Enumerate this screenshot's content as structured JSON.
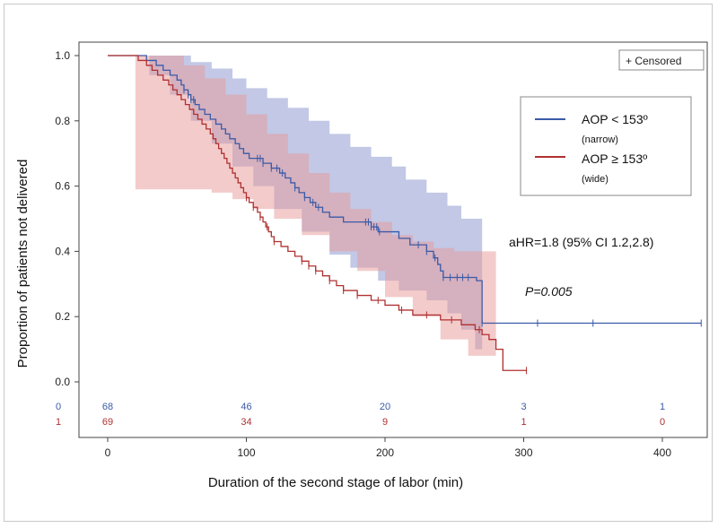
{
  "chart_data": {
    "type": "line",
    "title": "",
    "xlabel": "Duration of the second stage of labor (min)",
    "ylabel": "Proportion of patients not delivered",
    "xlim": [
      -15,
      430
    ],
    "ylim": [
      0.0,
      1.0
    ],
    "x_ticks": [
      0,
      100,
      200,
      300,
      400
    ],
    "x_tick_labels": [
      "0",
      "100",
      "200",
      "300",
      "400"
    ],
    "y_ticks": [
      0.0,
      0.2,
      0.4,
      0.6,
      0.8,
      1.0
    ],
    "y_tick_labels": [
      "0.0",
      "0.2",
      "0.4",
      "0.6",
      "0.8",
      "1.0"
    ],
    "censored_label": "+ Censored",
    "legend": [
      {
        "label": "AOP < 153º",
        "sub": "(narrow)",
        "color": "#3a5aa8"
      },
      {
        "label": "AOP ≥ 153º",
        "sub": "(wide)",
        "color": "#b03030"
      }
    ],
    "annotations": {
      "ahr": "aHR=1.8 (95% CI 1.2,2.8)",
      "p": "P=0.005"
    },
    "at_risk": {
      "times": [
        0,
        100,
        200,
        300,
        400
      ],
      "rows": [
        {
          "group": "0",
          "values": [
            "68",
            "46",
            "20",
            "3",
            "1"
          ],
          "color": "#3a5aa8"
        },
        {
          "group": "1",
          "values": [
            "69",
            "34",
            "9",
            "1",
            "0"
          ],
          "color": "#b03030"
        }
      ]
    },
    "series": [
      {
        "name": "AOP < 153º",
        "color": "#3a5aa8",
        "band_color": "#8f9bd0",
        "steps": [
          [
            0,
            1.0
          ],
          [
            25,
            1.0
          ],
          [
            28,
            0.985
          ],
          [
            35,
            0.97
          ],
          [
            40,
            0.955
          ],
          [
            45,
            0.94
          ],
          [
            50,
            0.925
          ],
          [
            53,
            0.91
          ],
          [
            55,
            0.895
          ],
          [
            58,
            0.88
          ],
          [
            60,
            0.865
          ],
          [
            63,
            0.85
          ],
          [
            66,
            0.835
          ],
          [
            70,
            0.82
          ],
          [
            74,
            0.805
          ],
          [
            78,
            0.79
          ],
          [
            82,
            0.775
          ],
          [
            85,
            0.76
          ],
          [
            88,
            0.745
          ],
          [
            92,
            0.73
          ],
          [
            95,
            0.715
          ],
          [
            98,
            0.7
          ],
          [
            102,
            0.685
          ],
          [
            112,
            0.67
          ],
          [
            118,
            0.655
          ],
          [
            124,
            0.64
          ],
          [
            128,
            0.625
          ],
          [
            132,
            0.61
          ],
          [
            135,
            0.595
          ],
          [
            138,
            0.58
          ],
          [
            142,
            0.565
          ],
          [
            146,
            0.55
          ],
          [
            150,
            0.535
          ],
          [
            155,
            0.52
          ],
          [
            160,
            0.505
          ],
          [
            170,
            0.49
          ],
          [
            190,
            0.475
          ],
          [
            195,
            0.46
          ],
          [
            210,
            0.44
          ],
          [
            218,
            0.42
          ],
          [
            230,
            0.4
          ],
          [
            235,
            0.38
          ],
          [
            238,
            0.36
          ],
          [
            240,
            0.34
          ],
          [
            242,
            0.32
          ],
          [
            266,
            0.31
          ],
          [
            270,
            0.18
          ],
          [
            428,
            0.18
          ]
        ],
        "upper": [
          [
            0,
            1.0
          ],
          [
            50,
            1.0
          ],
          [
            60,
            0.98
          ],
          [
            75,
            0.96
          ],
          [
            90,
            0.93
          ],
          [
            100,
            0.9
          ],
          [
            115,
            0.87
          ],
          [
            130,
            0.84
          ],
          [
            145,
            0.8
          ],
          [
            160,
            0.76
          ],
          [
            175,
            0.72
          ],
          [
            190,
            0.69
          ],
          [
            205,
            0.66
          ],
          [
            215,
            0.62
          ],
          [
            230,
            0.58
          ],
          [
            245,
            0.54
          ],
          [
            255,
            0.5
          ],
          [
            270,
            0.5
          ]
        ],
        "lower": [
          [
            0,
            1.0
          ],
          [
            30,
            0.94
          ],
          [
            45,
            0.88
          ],
          [
            60,
            0.8
          ],
          [
            75,
            0.73
          ],
          [
            90,
            0.66
          ],
          [
            105,
            0.6
          ],
          [
            120,
            0.53
          ],
          [
            140,
            0.46
          ],
          [
            160,
            0.39
          ],
          [
            175,
            0.35
          ],
          [
            195,
            0.31
          ],
          [
            210,
            0.28
          ],
          [
            230,
            0.25
          ],
          [
            245,
            0.21
          ],
          [
            255,
            0.16
          ],
          [
            265,
            0.1
          ],
          [
            270,
            0.08
          ]
        ],
        "censored": [
          55,
          58,
          60,
          62,
          108,
          110,
          112,
          118,
          122,
          126,
          135,
          142,
          148,
          152,
          186,
          188,
          190,
          192,
          194,
          196,
          224,
          230,
          236,
          242,
          247,
          252,
          256,
          260,
          270,
          310,
          350,
          428
        ]
      },
      {
        "name": "AOP ≥ 153º",
        "color": "#b03030",
        "band_color": "#e89898",
        "steps": [
          [
            0,
            1.0
          ],
          [
            20,
            1.0
          ],
          [
            22,
            0.985
          ],
          [
            28,
            0.97
          ],
          [
            32,
            0.955
          ],
          [
            36,
            0.94
          ],
          [
            40,
            0.925
          ],
          [
            44,
            0.91
          ],
          [
            47,
            0.895
          ],
          [
            50,
            0.88
          ],
          [
            53,
            0.865
          ],
          [
            56,
            0.85
          ],
          [
            59,
            0.835
          ],
          [
            62,
            0.82
          ],
          [
            65,
            0.805
          ],
          [
            68,
            0.79
          ],
          [
            71,
            0.775
          ],
          [
            74,
            0.76
          ],
          [
            76,
            0.745
          ],
          [
            78,
            0.73
          ],
          [
            80,
            0.715
          ],
          [
            82,
            0.7
          ],
          [
            84,
            0.685
          ],
          [
            86,
            0.67
          ],
          [
            88,
            0.655
          ],
          [
            90,
            0.64
          ],
          [
            92,
            0.625
          ],
          [
            94,
            0.61
          ],
          [
            96,
            0.595
          ],
          [
            98,
            0.58
          ],
          [
            100,
            0.565
          ],
          [
            102,
            0.55
          ],
          [
            105,
            0.535
          ],
          [
            108,
            0.52
          ],
          [
            110,
            0.505
          ],
          [
            112,
            0.49
          ],
          [
            114,
            0.475
          ],
          [
            116,
            0.46
          ],
          [
            118,
            0.445
          ],
          [
            120,
            0.43
          ],
          [
            125,
            0.415
          ],
          [
            130,
            0.4
          ],
          [
            135,
            0.385
          ],
          [
            140,
            0.37
          ],
          [
            145,
            0.355
          ],
          [
            150,
            0.34
          ],
          [
            155,
            0.325
          ],
          [
            160,
            0.31
          ],
          [
            165,
            0.295
          ],
          [
            170,
            0.28
          ],
          [
            180,
            0.265
          ],
          [
            190,
            0.25
          ],
          [
            200,
            0.235
          ],
          [
            210,
            0.22
          ],
          [
            220,
            0.205
          ],
          [
            240,
            0.19
          ],
          [
            255,
            0.175
          ],
          [
            265,
            0.16
          ],
          [
            270,
            0.145
          ],
          [
            275,
            0.13
          ],
          [
            280,
            0.1
          ],
          [
            285,
            0.035
          ],
          [
            302,
            0.035
          ]
        ],
        "upper": [
          [
            0,
            1.0
          ],
          [
            40,
            1.0
          ],
          [
            55,
            0.97
          ],
          [
            70,
            0.93
          ],
          [
            85,
            0.88
          ],
          [
            100,
            0.82
          ],
          [
            115,
            0.76
          ],
          [
            130,
            0.7
          ],
          [
            145,
            0.64
          ],
          [
            160,
            0.58
          ],
          [
            175,
            0.53
          ],
          [
            190,
            0.49
          ],
          [
            205,
            0.45
          ],
          [
            220,
            0.43
          ],
          [
            235,
            0.41
          ],
          [
            250,
            0.4
          ],
          [
            268,
            0.4
          ],
          [
            280,
            0.4
          ]
        ],
        "lower": [
          [
            0,
            1.0
          ],
          [
            20,
            0.59
          ],
          [
            30,
            0.59
          ],
          [
            45,
            0.59
          ],
          [
            60,
            0.59
          ],
          [
            75,
            0.58
          ],
          [
            90,
            0.56
          ],
          [
            105,
            0.53
          ],
          [
            120,
            0.5
          ],
          [
            140,
            0.45
          ],
          [
            160,
            0.4
          ],
          [
            180,
            0.34
          ],
          [
            200,
            0.26
          ],
          [
            220,
            0.2
          ],
          [
            240,
            0.13
          ],
          [
            260,
            0.08
          ],
          [
            280,
            0.03
          ]
        ],
        "censored": [
          100,
          105,
          110,
          115,
          120,
          140,
          145,
          150,
          160,
          170,
          180,
          195,
          212,
          230,
          248,
          268,
          302
        ]
      }
    ]
  }
}
